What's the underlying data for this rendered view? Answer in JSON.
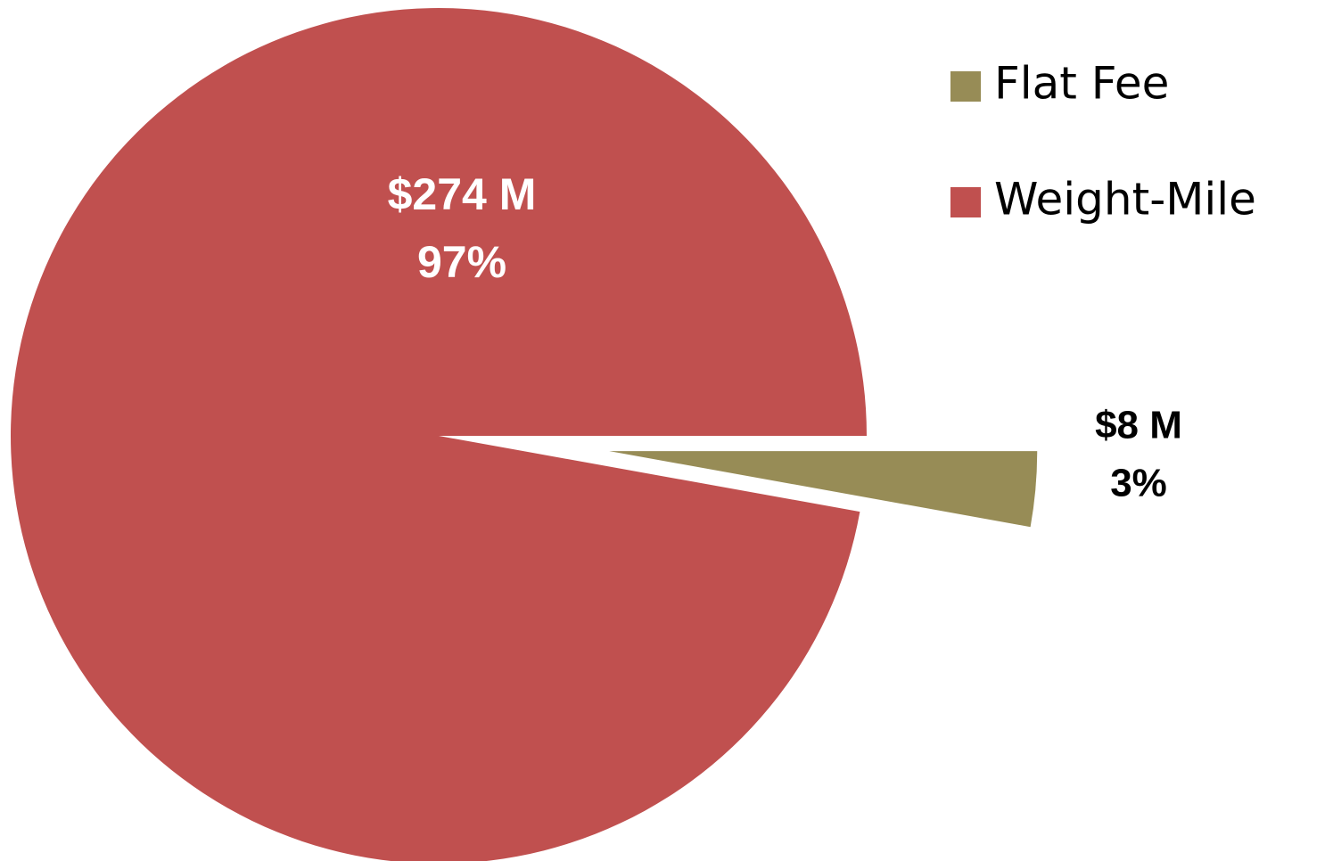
{
  "chart_data": {
    "type": "pie",
    "categories": [
      "Flat Fee",
      "Weight-Mile"
    ],
    "values": [
      8,
      274
    ],
    "value_labels": [
      "$8 M",
      "$274 M"
    ],
    "percent_labels": [
      "3%",
      "97%"
    ],
    "colors": [
      "#978c56",
      "#c0504f"
    ],
    "legend": "top-right"
  }
}
